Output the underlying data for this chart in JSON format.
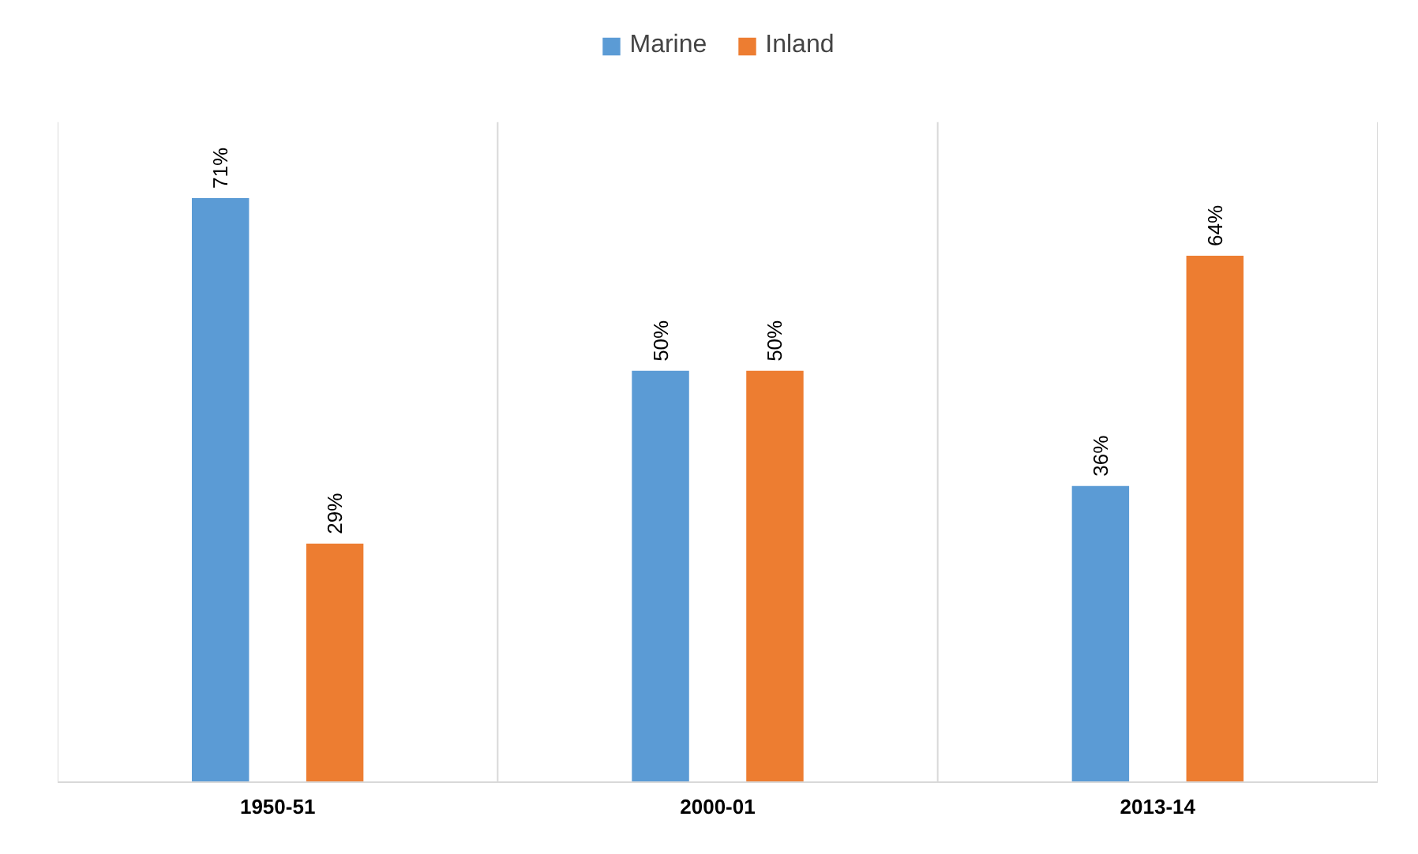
{
  "chart_data": {
    "type": "bar",
    "categories": [
      "1950-51",
      "2000-01",
      "2013-14"
    ],
    "series": [
      {
        "name": "Marine",
        "color": "#5b9bd5",
        "values": [
          71,
          50,
          36
        ],
        "value_labels": [
          "71%",
          "50%",
          "36%"
        ]
      },
      {
        "name": "Inland",
        "color": "#ed7d31",
        "values": [
          29,
          50,
          64
        ],
        "value_labels": [
          "29%",
          "50%",
          "64%"
        ]
      }
    ],
    "grid": "x",
    "legend": "top"
  }
}
